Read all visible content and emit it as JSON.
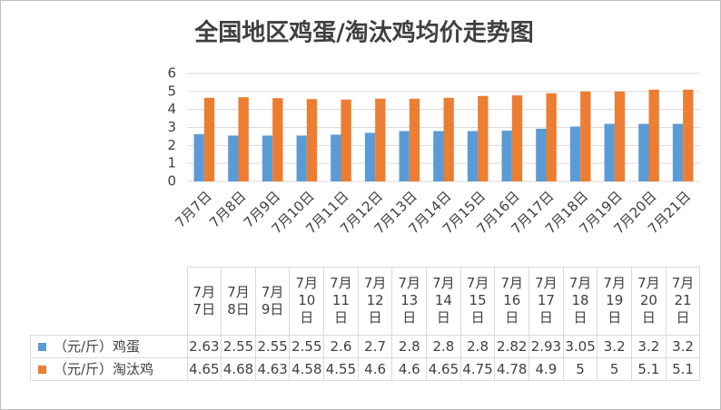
{
  "chart_data": {
    "type": "bar",
    "title": "全国地区鸡蛋/淘汰鸡均价走势图",
    "categories": [
      "7月7日",
      "7月8日",
      "7月9日",
      "7月10日",
      "7月11日",
      "7月12日",
      "7月13日",
      "7月14日",
      "7月15日",
      "7月16日",
      "7月17日",
      "7月18日",
      "7月19日",
      "7月20日",
      "7月21日"
    ],
    "series": [
      {
        "name": "（元/斤）鸡蛋",
        "color": "#5b9bd5",
        "values": [
          2.63,
          2.55,
          2.55,
          2.55,
          2.6,
          2.7,
          2.8,
          2.8,
          2.8,
          2.82,
          2.93,
          3.05,
          3.2,
          3.2,
          3.2
        ]
      },
      {
        "name": "（元/斤）淘汰鸡",
        "color": "#ed7d31",
        "values": [
          4.65,
          4.68,
          4.63,
          4.58,
          4.55,
          4.6,
          4.6,
          4.65,
          4.75,
          4.78,
          4.9,
          5,
          5,
          5.1,
          5.1
        ]
      }
    ],
    "ylim": [
      0,
      6
    ],
    "yticks": [
      0,
      1,
      2,
      3,
      4,
      5,
      6
    ],
    "grid": true
  }
}
